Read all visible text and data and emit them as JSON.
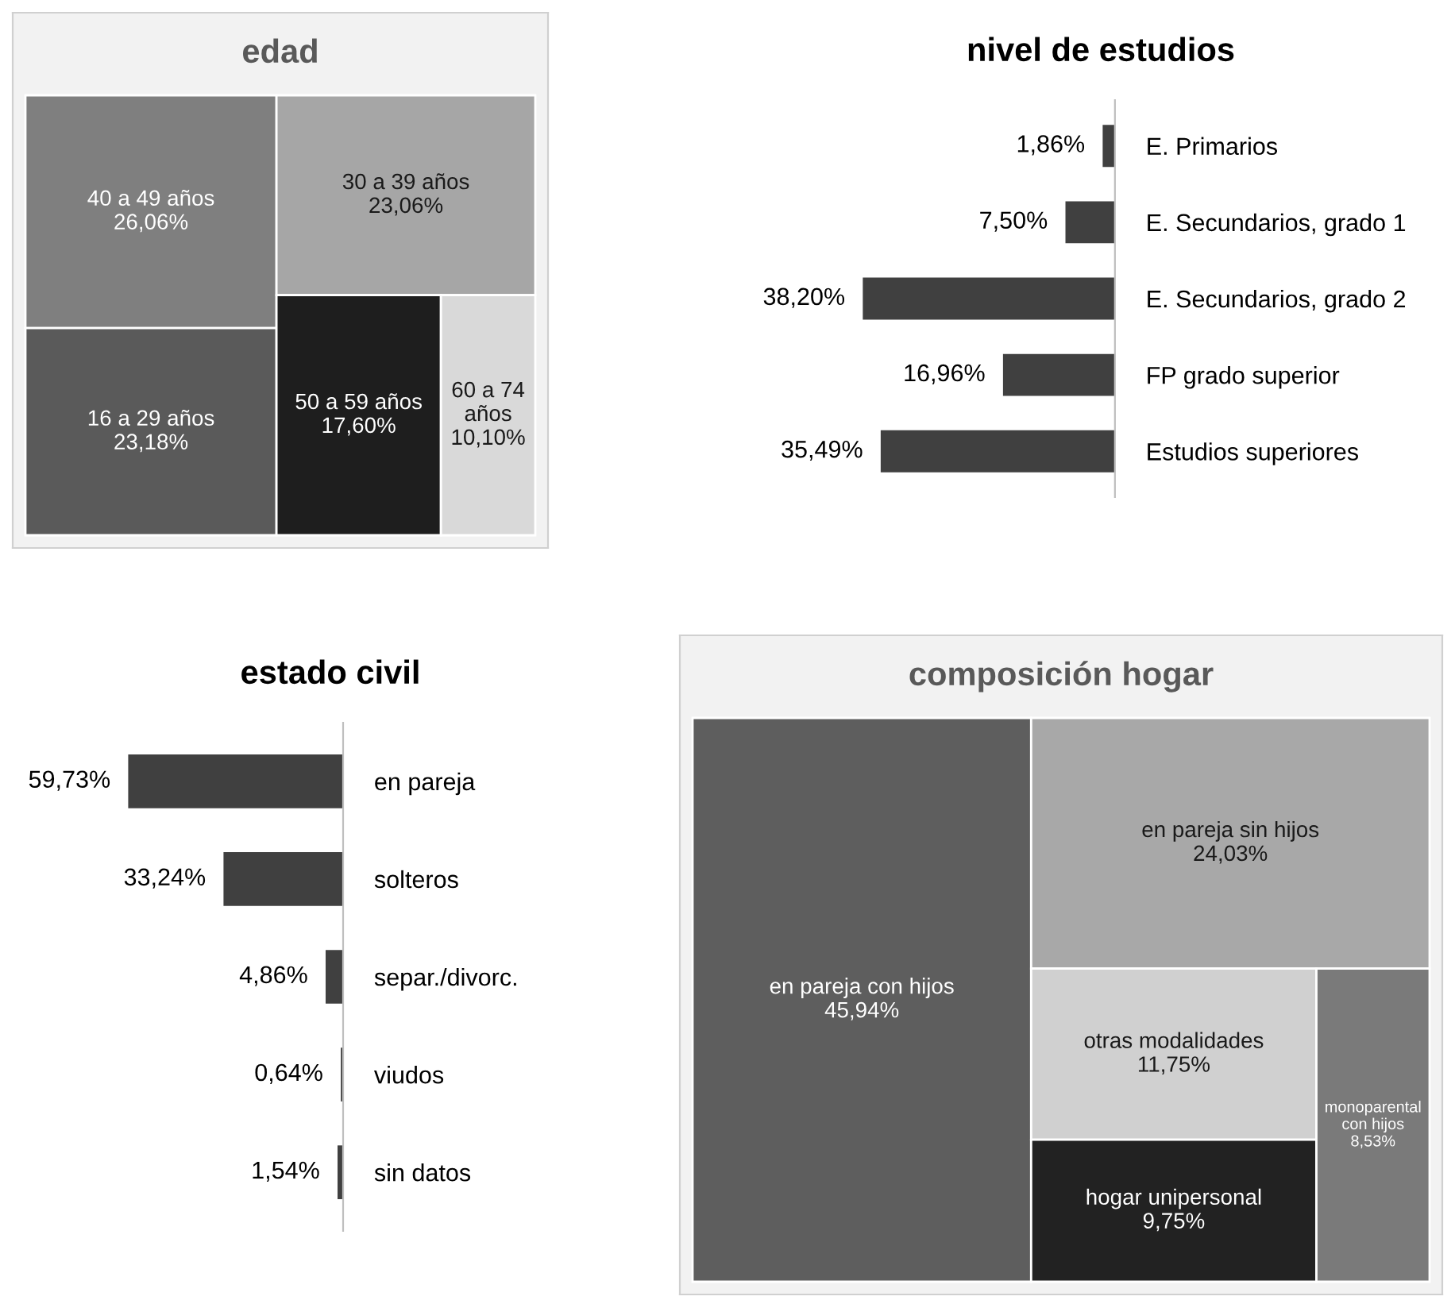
{
  "chart_data": [
    {
      "type": "other",
      "title": "edad",
      "categories": [
        "40 a 49 años",
        "16 a 29 años",
        "30 a 39 años",
        "50 a 59 años",
        "60 a 74 años"
      ],
      "values": [
        26.06,
        23.18,
        23.06,
        17.6,
        10.1
      ],
      "value_labels": [
        "26,06%",
        "23,18%",
        "23,06%",
        "17,60%",
        "10,10%"
      ],
      "colors": [
        "#7f7f7f",
        "#5a5a5a",
        "#a6a6a6",
        "#1e1e1e",
        "#d9d9d9"
      ]
    },
    {
      "type": "bar",
      "orientation": "horizontal",
      "title": "nivel de estudios",
      "categories": [
        "E. Primarios",
        "E. Secundarios, grado 1",
        "E. Secundarios, grado 2",
        "FP grado superior",
        "Estudios superiores"
      ],
      "values": [
        1.86,
        7.5,
        38.2,
        16.96,
        35.49
      ],
      "value_labels": [
        "1,86%",
        "7,50%",
        "38,20%",
        "16,96%",
        "35,49%"
      ],
      "color": "#404040"
    },
    {
      "type": "bar",
      "orientation": "horizontal",
      "title": "estado civil",
      "categories": [
        "en pareja",
        "solteros",
        "separ./divorc.",
        "viudos",
        "sin datos"
      ],
      "values": [
        59.73,
        33.24,
        4.86,
        0.64,
        1.54
      ],
      "value_labels": [
        "59,73%",
        "33,24%",
        "4,86%",
        "0,64%",
        "1,54%"
      ],
      "color": "#404040"
    },
    {
      "type": "other",
      "title": "composición hogar",
      "categories": [
        "en pareja con hijos",
        "en pareja sin hijos",
        "otras modalidades",
        "hogar unipersonal",
        "monoparental con hijos"
      ],
      "values": [
        45.94,
        24.03,
        11.75,
        9.75,
        8.53
      ],
      "value_labels": [
        "45,94%",
        "24,03%",
        "11,75%",
        "9,75%",
        "8,53%"
      ],
      "colors": [
        "#5e5e5e",
        "#a8a8a8",
        "#d0d0d0",
        "#222222",
        "#7a7a7a"
      ]
    }
  ]
}
